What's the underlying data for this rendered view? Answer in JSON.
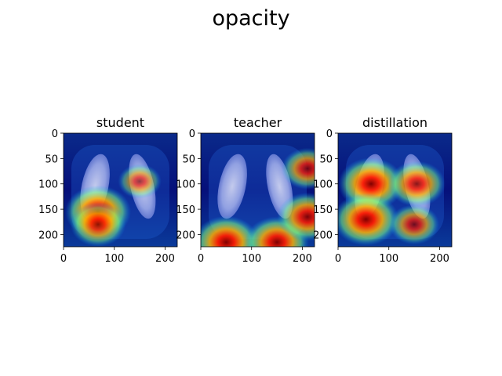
{
  "suptitle": "opacity",
  "chart_data": {
    "type": "heatmap",
    "title": "opacity",
    "description_panels": 3,
    "colormap": "jet",
    "panels": [
      {
        "title": "student",
        "xlim": [
          0,
          224
        ],
        "ylim": [
          224,
          0
        ],
        "xticks": [
          0,
          100,
          200
        ],
        "yticks": [
          0,
          50,
          100,
          150,
          200
        ],
        "hotspots": [
          {
            "x": 68,
            "y": 155,
            "intensity": 1.0
          },
          {
            "x": 68,
            "y": 180,
            "intensity": 0.7
          },
          {
            "x": 150,
            "y": 95,
            "intensity": 0.35
          }
        ]
      },
      {
        "title": "teacher",
        "xlim": [
          0,
          224
        ],
        "ylim": [
          224,
          0
        ],
        "xticks": [
          0,
          100,
          200
        ],
        "yticks": [
          0,
          50,
          100,
          150,
          200
        ],
        "hotspots": [
          {
            "x": 50,
            "y": 215,
            "intensity": 1.0
          },
          {
            "x": 150,
            "y": 215,
            "intensity": 0.95
          },
          {
            "x": 210,
            "y": 165,
            "intensity": 0.85
          },
          {
            "x": 210,
            "y": 70,
            "intensity": 0.6
          }
        ]
      },
      {
        "title": "distillation",
        "xlim": [
          0,
          224
        ],
        "ylim": [
          224,
          0
        ],
        "xticks": [
          0,
          100,
          200
        ],
        "yticks": [
          0,
          50,
          100,
          150,
          200
        ],
        "hotspots": [
          {
            "x": 65,
            "y": 100,
            "intensity": 1.0
          },
          {
            "x": 55,
            "y": 170,
            "intensity": 1.0
          },
          {
            "x": 155,
            "y": 100,
            "intensity": 0.75
          },
          {
            "x": 150,
            "y": 180,
            "intensity": 0.55
          }
        ]
      }
    ]
  }
}
